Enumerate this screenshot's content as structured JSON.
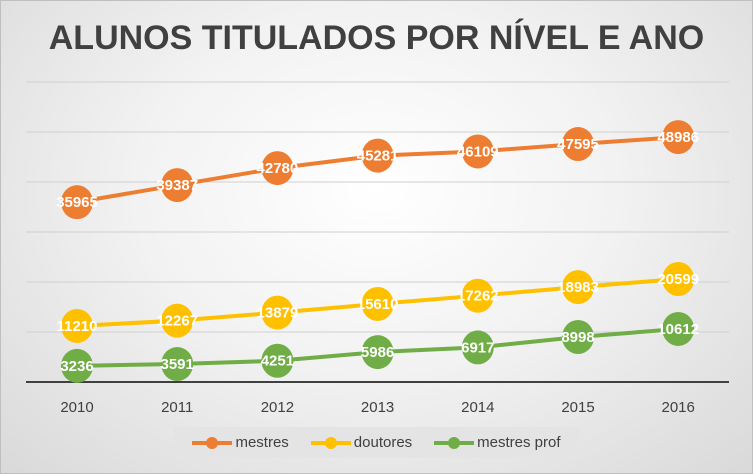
{
  "chart_data": {
    "type": "line",
    "title": "ALUNOS TITULADOS POR NÍVEL E ANO",
    "categories": [
      "2010",
      "2011",
      "2012",
      "2013",
      "2014",
      "2015",
      "2016"
    ],
    "ylim": [
      0,
      60000
    ],
    "grid": true,
    "legend": "bottom",
    "series": [
      {
        "name": "mestres",
        "color": "#ed7d31",
        "values": [
          35965,
          39387,
          42780,
          45281,
          46109,
          47595,
          48986
        ]
      },
      {
        "name": "doutores",
        "color": "#ffc000",
        "values": [
          11210,
          12267,
          13879,
          15610,
          17262,
          18983,
          20599
        ]
      },
      {
        "name": "mestres prof",
        "color": "#70ad47",
        "values": [
          3236,
          3591,
          4251,
          5986,
          6917,
          8998,
          10612
        ]
      }
    ]
  }
}
